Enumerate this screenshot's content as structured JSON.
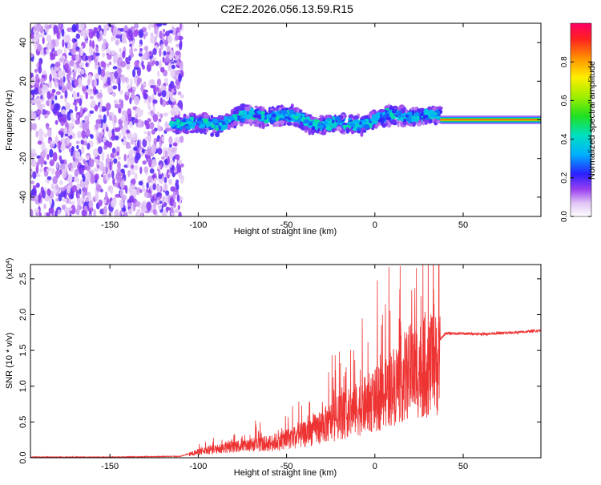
{
  "title": "C2E2.2026.056.13.59.R15",
  "chart_data": [
    {
      "type": "heatmap",
      "xlabel": "Height of straight line (km)",
      "ylabel": "Frequency (Hz)",
      "xlim": [
        -195,
        94
      ],
      "ylim": [
        -50,
        50
      ],
      "xticks": [
        -150,
        -100,
        -50,
        0,
        50
      ],
      "yticks": [
        -40,
        -20,
        0,
        20,
        40
      ],
      "colorbar": {
        "label": "Normalized spectral amplitude",
        "range": [
          0,
          1
        ],
        "ticks": [
          0.0,
          0.2,
          0.4,
          0.6,
          0.8
        ]
      },
      "regions": [
        {
          "x_range": [
            -195,
            -115
          ],
          "freq_range": [
            -50,
            50
          ],
          "amplitude_range": [
            0.05,
            0.2
          ]
        },
        {
          "x_range": [
            -115,
            37
          ],
          "freq_range": [
            -10,
            10
          ],
          "amplitude_range": [
            0.1,
            0.5
          ]
        },
        {
          "x_range": [
            37,
            94
          ],
          "freq_range": [
            -1.5,
            1.5
          ],
          "amplitude_range": [
            0.6,
            0.95
          ]
        }
      ]
    },
    {
      "type": "line",
      "xlabel": "Height of straight line (km)",
      "ylabel": "SNR (10 * v/v)",
      "y_multiplier": "(x10^4)",
      "xlim": [
        -195,
        94
      ],
      "ylim": [
        0,
        2.7
      ],
      "xticks": [
        -150,
        -100,
        -50,
        0,
        50
      ],
      "yticks": [
        0.0,
        0.5,
        1.0,
        1.5,
        2.0,
        2.5
      ],
      "series": [
        {
          "color": "#ee3333",
          "x": [
            -195,
            -150,
            -110,
            -100,
            -80,
            -60,
            -40,
            -20,
            0,
            20,
            37,
            40,
            60,
            80,
            94
          ],
          "y": [
            0.01,
            0.01,
            0.02,
            0.1,
            0.2,
            0.25,
            0.4,
            0.7,
            1.0,
            1.5,
            1.65,
            1.74,
            1.73,
            1.75,
            1.78
          ]
        }
      ]
    }
  ]
}
